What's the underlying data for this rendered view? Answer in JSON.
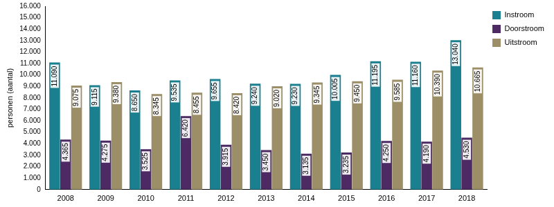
{
  "chart_data": {
    "type": "bar",
    "y_label": "personen (aantal)",
    "categories": [
      "2008",
      "2009",
      "2010",
      "2011",
      "2012",
      "2013",
      "2014",
      "2015",
      "2016",
      "2017",
      "2018"
    ],
    "series": [
      {
        "name": "Instroom",
        "color": "#1a7f8e",
        "values": [
          11090,
          9115,
          8650,
          9535,
          9655,
          9240,
          9230,
          10005,
          11195,
          11160,
          13040
        ],
        "value_labels": [
          "11.090",
          "9.115",
          "8.650",
          "9.535",
          "9.655",
          "9.240",
          "9.230",
          "10.005",
          "11.195",
          "11.160",
          "13.040"
        ]
      },
      {
        "name": "Doorstroom",
        "color": "#4d2a63",
        "values": [
          4365,
          4275,
          3525,
          6420,
          3915,
          3450,
          3135,
          3235,
          4250,
          4190,
          4530
        ],
        "value_labels": [
          "4.365",
          "4.275",
          "3.525",
          "6.420",
          "3.915",
          "3.450",
          "3.135",
          "3.235",
          "4.250",
          "4.190",
          "4.530"
        ]
      },
      {
        "name": "Uitstroom",
        "color": "#9c8f68",
        "values": [
          9075,
          9380,
          8345,
          8455,
          8420,
          9020,
          9345,
          9450,
          9585,
          10390,
          10665
        ],
        "value_labels": [
          "9.075",
          "9.380",
          "8.345",
          "8.455",
          "8.420",
          "9.020",
          "9.345",
          "9.450",
          "9.585",
          "10.390",
          "10.665"
        ]
      }
    ],
    "ylim": [
      0,
      16000
    ],
    "yticks": [
      0,
      {
        "value": 1000,
        "label": "1.000"
      },
      {
        "value": 2000,
        "label": "2.000"
      },
      {
        "value": 3000,
        "label": "3.000"
      },
      {
        "value": 4000,
        "label": "4.000"
      },
      {
        "value": 5000,
        "label": "5.000"
      },
      {
        "value": 6000,
        "label": "6.000"
      },
      {
        "value": 7000,
        "label": "7.000"
      },
      {
        "value": 8000,
        "label": "8.000"
      },
      {
        "value": 9000,
        "label": "9.000"
      },
      {
        "value": 10000,
        "label": "10.000"
      },
      {
        "value": 11000,
        "label": "11.000"
      },
      {
        "value": 12000,
        "label": "12.000"
      },
      {
        "value": 13000,
        "label": "13.000"
      },
      {
        "value": 14000,
        "label": "14.000"
      },
      {
        "value": 15000,
        "label": "15.000"
      },
      {
        "value": 16000,
        "label": "16.000"
      }
    ],
    "grid": false,
    "legend": "right",
    "data_labels": true
  }
}
